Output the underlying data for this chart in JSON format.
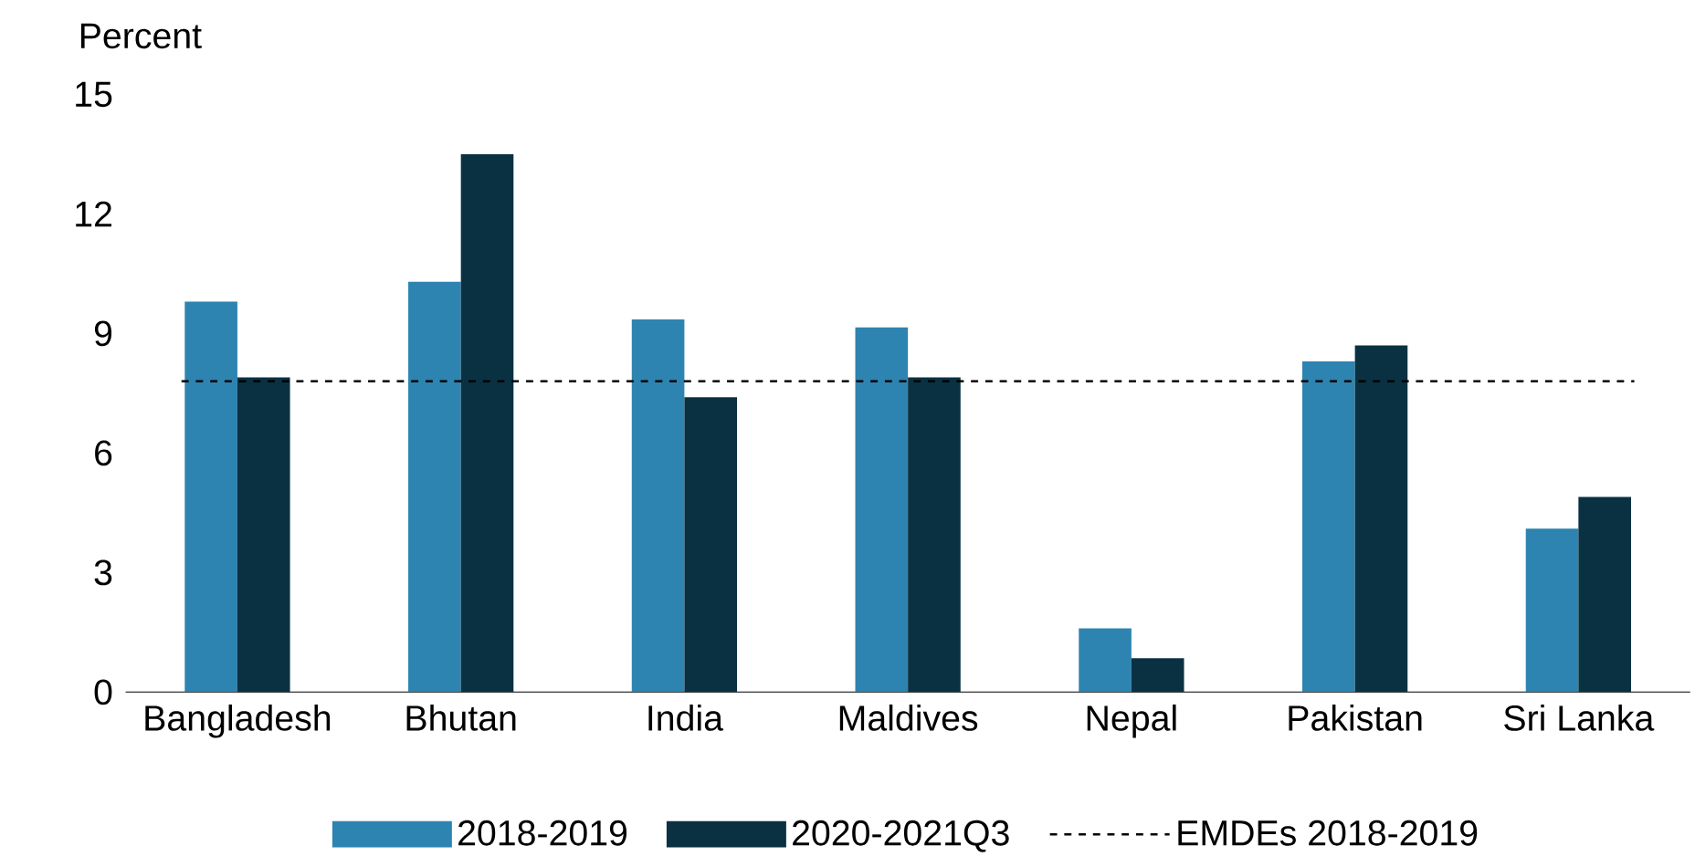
{
  "chart_data": {
    "type": "bar",
    "ylabel": "Percent",
    "categories": [
      "Bangladesh",
      "Bhutan",
      "India",
      "Maldives",
      "Nepal",
      "Pakistan",
      "Sri Lanka"
    ],
    "series": [
      {
        "name": "2018-2019",
        "color": "#2e84b0",
        "values": [
          9.8,
          10.3,
          9.35,
          9.15,
          1.6,
          8.3,
          4.1
        ]
      },
      {
        "name": "2020-2021Q3",
        "color": "#0a3142",
        "values": [
          7.9,
          13.5,
          7.4,
          7.9,
          0.85,
          8.7,
          4.9
        ]
      }
    ],
    "ylim": [
      0,
      15
    ],
    "yticks": [
      0,
      3,
      6,
      9,
      12,
      15
    ],
    "ref_lines": [
      {
        "axis": "y",
        "value": 7.8,
        "label": "EMDEs 2018-2019",
        "color": "#000000",
        "line_style": "dashed"
      }
    ],
    "grid": false,
    "legend": "bottom"
  }
}
